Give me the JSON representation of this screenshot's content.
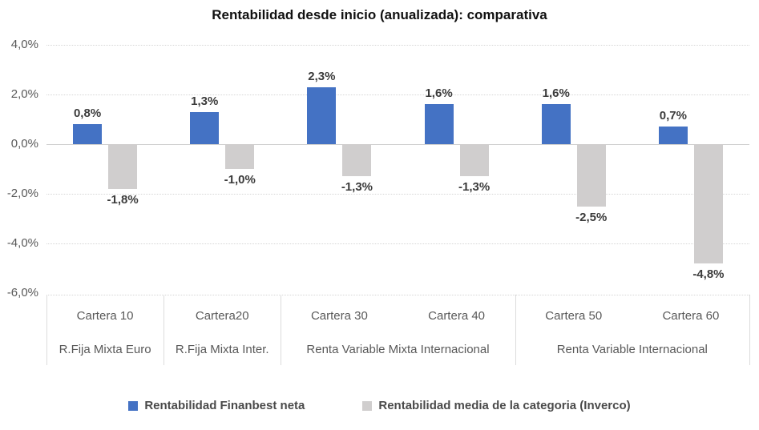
{
  "chart_data": {
    "type": "bar",
    "title": "Rentabilidad desde inicio (anualizada): comparativa",
    "categories": [
      "Cartera 10",
      "Cartera20",
      "Cartera 30",
      "Cartera 40",
      "Cartera 50",
      "Cartera 60"
    ],
    "category_groups": [
      {
        "label": "R.Fija Mixta Euro",
        "span": 1
      },
      {
        "label": "R.Fija Mixta Inter.",
        "span": 1
      },
      {
        "label": "Renta Variable Mixta Internacional",
        "span": 2
      },
      {
        "label": "Renta Variable Internacional",
        "span": 2
      }
    ],
    "series": [
      {
        "name": "Rentabilidad Finanbest neta",
        "color": "#4472C4",
        "values": [
          0.8,
          1.3,
          2.3,
          1.6,
          1.6,
          0.7
        ],
        "labels": [
          "0,8%",
          "1,3%",
          "2,3%",
          "1,6%",
          "1,6%",
          "0,7%"
        ]
      },
      {
        "name": "Rentabilidad media de la categoria (Inverco)",
        "color": "#D0CECE",
        "values": [
          -1.8,
          -1.0,
          -1.3,
          -1.3,
          -2.5,
          -4.8
        ],
        "labels": [
          "-1,8%",
          "-1,0%",
          "-1,3%",
          "-1,3%",
          "-2,5%",
          "-4,8%"
        ]
      }
    ],
    "y_axis": {
      "tick_labels": [
        "4,0%",
        "2,0%",
        "0,0%",
        "-2,0%",
        "-4,0%",
        "-6,0%"
      ],
      "tick_values": [
        4,
        2,
        0,
        -2,
        -4,
        -6
      ],
      "min": -6,
      "max": 4,
      "grid": "dotted"
    },
    "legend_position": "bottom"
  },
  "colors": {
    "series_finanbest": "#4472C4",
    "series_inverco": "#D0CECE",
    "grid": "#D6D6D6",
    "axis_text": "#595959",
    "data_label": "#3B3B3B",
    "title_text": "#111111"
  }
}
